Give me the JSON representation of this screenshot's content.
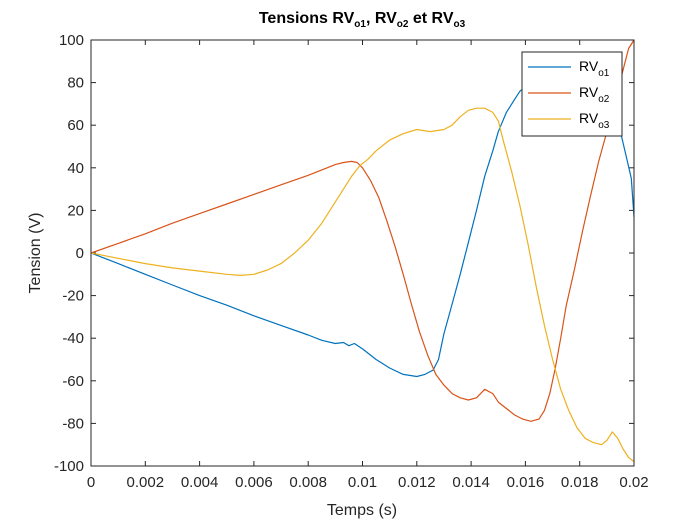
{
  "chart_data": {
    "type": "line",
    "title": {
      "main": "Tensions RV",
      "parts": [
        {
          "base": "Tensions RV",
          "sub": "o1"
        },
        {
          "base": ", RV",
          "sub": "o2"
        },
        {
          "base": " et RV",
          "sub": "o3"
        }
      ]
    },
    "xlabel": "Temps (s)",
    "ylabel": "Tension (V)",
    "xlim": [
      0,
      0.02
    ],
    "ylim": [
      -100,
      100
    ],
    "xticks": [
      0,
      0.002,
      0.004,
      0.006,
      0.008,
      0.01,
      0.012,
      0.014,
      0.016,
      0.018,
      0.02
    ],
    "xtick_labels": [
      "0",
      "0.002",
      "0.004",
      "0.006",
      "0.008",
      "0.01",
      "0.012",
      "0.014",
      "0.016",
      "0.018",
      "0.02"
    ],
    "yticks": [
      -100,
      -80,
      -60,
      -40,
      -20,
      0,
      20,
      40,
      60,
      80,
      100
    ],
    "ytick_labels": [
      "-100",
      "-80",
      "-60",
      "-40",
      "-20",
      "0",
      "20",
      "40",
      "60",
      "80",
      "100"
    ],
    "grid": false,
    "legend_position": "top-right",
    "series": [
      {
        "name": "RVo1",
        "base": "RV",
        "sub": "o1",
        "color": "#0072BD",
        "x": [
          0,
          0.001,
          0.002,
          0.003,
          0.004,
          0.005,
          0.006,
          0.007,
          0.008,
          0.0085,
          0.009,
          0.0093,
          0.0095,
          0.0097,
          0.01,
          0.0105,
          0.011,
          0.0115,
          0.012,
          0.0123,
          0.0126,
          0.0128,
          0.013,
          0.0133,
          0.0136,
          0.0139,
          0.0142,
          0.0145,
          0.0148,
          0.015,
          0.0153,
          0.0156,
          0.0158,
          0.016,
          0.0163,
          0.0166,
          0.0169,
          0.0172,
          0.0175,
          0.0178,
          0.018,
          0.0183,
          0.0186,
          0.0189,
          0.0191,
          0.0193,
          0.0195,
          0.0197,
          0.0199,
          0.02
        ],
        "y": [
          0,
          -5,
          -10,
          -15,
          -20,
          -24.5,
          -29.5,
          -34,
          -38.5,
          -41,
          -42.5,
          -42,
          -43.5,
          -42.5,
          -45,
          -50,
          -54,
          -57,
          -58,
          -57,
          -55,
          -50,
          -38,
          -24,
          -10,
          5,
          20,
          36,
          48,
          57,
          66,
          72,
          76,
          78,
          79,
          79.5,
          79,
          78,
          77,
          76,
          75,
          74,
          73,
          72,
          70,
          66,
          57,
          46,
          35,
          17
        ]
      },
      {
        "name": "RVo2",
        "base": "RV",
        "sub": "o2",
        "color": "#D95319",
        "x": [
          0,
          0.001,
          0.002,
          0.003,
          0.004,
          0.005,
          0.006,
          0.007,
          0.008,
          0.0085,
          0.009,
          0.0093,
          0.0096,
          0.0098,
          0.01,
          0.0103,
          0.0106,
          0.0109,
          0.0112,
          0.0115,
          0.0118,
          0.0121,
          0.0124,
          0.0127,
          0.013,
          0.0133,
          0.0136,
          0.0139,
          0.0142,
          0.0145,
          0.0148,
          0.015,
          0.0153,
          0.0156,
          0.0159,
          0.0162,
          0.0165,
          0.0167,
          0.0169,
          0.0171,
          0.0173,
          0.0175,
          0.0178,
          0.0181,
          0.0184,
          0.0187,
          0.019,
          0.0193,
          0.0196,
          0.0198,
          0.02
        ],
        "y": [
          0,
          4.5,
          9,
          14,
          18.5,
          23,
          27.5,
          32,
          36.5,
          39,
          41.5,
          42.5,
          43,
          42.5,
          40,
          34,
          26,
          15,
          3,
          -10,
          -24,
          -37,
          -48,
          -57,
          -62,
          -66,
          -68,
          -69,
          -68,
          -64,
          -66,
          -70,
          -73,
          -76,
          -78,
          -79,
          -78,
          -74,
          -66,
          -54,
          -40,
          -25,
          -8,
          10,
          27,
          43,
          57,
          72,
          86,
          96,
          100
        ]
      },
      {
        "name": "RVo3",
        "base": "RV",
        "sub": "o3",
        "color": "#EDB120",
        "x": [
          0,
          0.001,
          0.002,
          0.003,
          0.004,
          0.005,
          0.0055,
          0.006,
          0.0065,
          0.007,
          0.0075,
          0.008,
          0.0085,
          0.009,
          0.0093,
          0.0096,
          0.0099,
          0.0102,
          0.0105,
          0.011,
          0.0115,
          0.012,
          0.0125,
          0.013,
          0.0133,
          0.0136,
          0.0139,
          0.0142,
          0.0145,
          0.0148,
          0.015,
          0.0152,
          0.0155,
          0.0158,
          0.0161,
          0.0164,
          0.0167,
          0.017,
          0.0173,
          0.0176,
          0.0179,
          0.0182,
          0.0185,
          0.0188,
          0.019,
          0.0192,
          0.0194,
          0.0196,
          0.0198,
          0.02
        ],
        "y": [
          0,
          -2.5,
          -5,
          -7,
          -8.5,
          -10,
          -10.5,
          -10,
          -8,
          -5,
          0,
          6,
          14,
          24,
          30,
          36,
          41,
          44,
          48,
          53,
          56,
          58,
          57,
          58,
          60,
          64,
          67,
          68,
          68,
          66,
          62,
          52,
          38,
          22,
          4,
          -16,
          -34,
          -50,
          -64,
          -74,
          -82,
          -87,
          -89,
          -90,
          -88,
          -84,
          -87,
          -92,
          -96,
          -98
        ]
      }
    ]
  }
}
